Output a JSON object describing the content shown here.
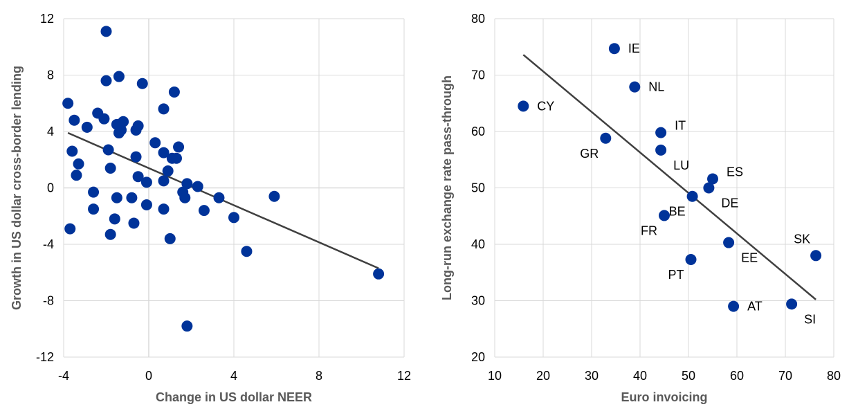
{
  "chart_data": [
    {
      "type": "scatter",
      "title": "",
      "xlabel": "Change in US dollar NEER",
      "ylabel": "Growth in US dollar cross-border lending",
      "xlim": [
        -4,
        12
      ],
      "ylim": [
        -12,
        12
      ],
      "xticks": [
        -4,
        0,
        4,
        8,
        12
      ],
      "yticks": [
        -12,
        -8,
        -4,
        0,
        4,
        8,
        12
      ],
      "grid": true,
      "point_color": "#003399",
      "trend_color": "#404040",
      "trendline": [
        [
          -3.8,
          3.9
        ],
        [
          10.8,
          -5.7
        ]
      ],
      "points": [
        [
          -2,
          11.1
        ],
        [
          -2,
          7.6
        ],
        [
          -1.4,
          7.9
        ],
        [
          -0.3,
          7.4
        ],
        [
          1.2,
          6.8
        ],
        [
          -3.8,
          6
        ],
        [
          -3.5,
          4.8
        ],
        [
          -2.4,
          5.3
        ],
        [
          -2.1,
          4.9
        ],
        [
          -2.9,
          4.3
        ],
        [
          -1.5,
          4.5
        ],
        [
          -1.2,
          4.7
        ],
        [
          -1.4,
          3.9
        ],
        [
          -1.3,
          4.1
        ],
        [
          -0.6,
          4.1
        ],
        [
          -0.5,
          4.4
        ],
        [
          0.7,
          5.6
        ],
        [
          0.3,
          3.2
        ],
        [
          1.4,
          2.9
        ],
        [
          -3.6,
          2.6
        ],
        [
          -1.9,
          2.7
        ],
        [
          -0.6,
          2.2
        ],
        [
          0.7,
          2.5
        ],
        [
          1.1,
          2.1
        ],
        [
          1.3,
          2.1
        ],
        [
          -3.3,
          1.7
        ],
        [
          -1.8,
          1.4
        ],
        [
          0.9,
          1.2
        ],
        [
          -3.4,
          0.9
        ],
        [
          -0.5,
          0.8
        ],
        [
          -0.1,
          0.4
        ],
        [
          0.7,
          0.5
        ],
        [
          1.8,
          0.3
        ],
        [
          2.3,
          0.1
        ],
        [
          -2.6,
          -0.3
        ],
        [
          1.6,
          -0.3
        ],
        [
          1.7,
          -0.7
        ],
        [
          3.3,
          -0.7
        ],
        [
          5.9,
          -0.6
        ],
        [
          -1.5,
          -0.7
        ],
        [
          -0.8,
          -0.7
        ],
        [
          -2.6,
          -1.5
        ],
        [
          -0.1,
          -1.2
        ],
        [
          0.7,
          -1.5
        ],
        [
          2.6,
          -1.6
        ],
        [
          -1.6,
          -2.2
        ],
        [
          -0.7,
          -2.5
        ],
        [
          4,
          -2.1
        ],
        [
          -3.7,
          -2.9
        ],
        [
          -1.8,
          -3.3
        ],
        [
          1,
          -3.6
        ],
        [
          4.6,
          -4.5
        ],
        [
          10.8,
          -6.1
        ],
        [
          1.8,
          -9.8
        ]
      ]
    },
    {
      "type": "scatter",
      "title": "",
      "xlabel": "Euro invoicing",
      "ylabel": "Long-run exchange rate pass-through",
      "xlim": [
        10,
        80
      ],
      "ylim": [
        20,
        80
      ],
      "xticks": [
        10,
        20,
        30,
        40,
        50,
        60,
        70,
        80
      ],
      "yticks": [
        20,
        30,
        40,
        50,
        60,
        70,
        80
      ],
      "grid": true,
      "point_color": "#003399",
      "trend_color": "#404040",
      "trendline": [
        [
          15.9,
          73.6
        ],
        [
          76.3,
          30.2
        ]
      ],
      "points": [
        {
          "label": "IE",
          "x": 34.7,
          "y": 74.7,
          "anchor": "right"
        },
        {
          "label": "NL",
          "x": 38.9,
          "y": 67.9,
          "anchor": "right"
        },
        {
          "label": "CY",
          "x": 15.9,
          "y": 64.5,
          "anchor": "right"
        },
        {
          "label": "IT",
          "x": 44.3,
          "y": 59.8,
          "anchor": "upper-right"
        },
        {
          "label": "GR",
          "x": 32.9,
          "y": 58.8,
          "anchor": "lower-left"
        },
        {
          "label": "LU",
          "x": 44.3,
          "y": 56.7,
          "anchor": "lower-right"
        },
        {
          "label": "ES",
          "x": 55,
          "y": 51.6,
          "anchor": "upper-right"
        },
        {
          "label": "DE",
          "x": 54.2,
          "y": 50,
          "anchor": "lower-right"
        },
        {
          "label": "BE",
          "x": 50.8,
          "y": 48.5,
          "anchor": "lower-left"
        },
        {
          "label": "FR",
          "x": 45,
          "y": 45.1,
          "anchor": "lower-left"
        },
        {
          "label": "EE",
          "x": 58.3,
          "y": 40.3,
          "anchor": "lower-right"
        },
        {
          "label": "SK",
          "x": 76.3,
          "y": 38,
          "anchor": "upper-left"
        },
        {
          "label": "PT",
          "x": 50.5,
          "y": 37.3,
          "anchor": "lower-left"
        },
        {
          "label": "AT",
          "x": 59.3,
          "y": 29,
          "anchor": "right"
        },
        {
          "label": "SI",
          "x": 71.3,
          "y": 29.4,
          "anchor": "lower-right"
        }
      ]
    }
  ]
}
